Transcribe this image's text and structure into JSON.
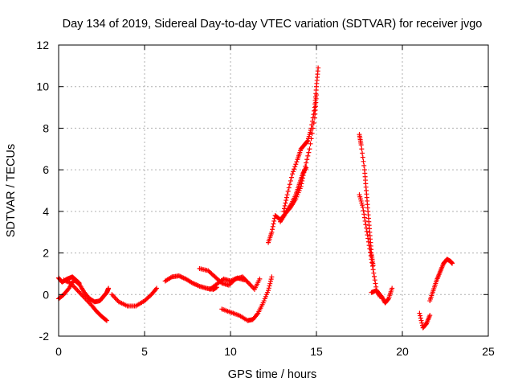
{
  "chart_data": {
    "type": "scatter",
    "title": "Day 134 of 2019, Sidereal Day-to-day VTEC variation (SDTVAR) for receiver jvgo",
    "xlabel": "GPS time / hours",
    "ylabel": "SDTVAR / TECUs",
    "xlim": [
      0,
      25
    ],
    "ylim": [
      -2,
      12
    ],
    "xticks": [
      0,
      5,
      10,
      15,
      20,
      25
    ],
    "yticks": [
      -2,
      0,
      2,
      4,
      6,
      8,
      10,
      12
    ],
    "grid": true,
    "marker": "+",
    "color": "#ff0000",
    "segments": [
      {
        "x": [
          0.0,
          0.2,
          0.5,
          0.8,
          1.0,
          1.2
        ],
        "y": [
          0.8,
          0.6,
          0.75,
          0.85,
          0.7,
          0.55
        ]
      },
      {
        "x": [
          0.0,
          0.3,
          0.6,
          0.9,
          1.2,
          1.5,
          1.8,
          2.1,
          2.4,
          2.6,
          2.8,
          2.9
        ],
        "y": [
          -0.2,
          0.0,
          0.3,
          0.7,
          0.5,
          0.1,
          -0.2,
          -0.35,
          -0.3,
          -0.1,
          0.1,
          0.3
        ]
      },
      {
        "x": [
          0.3,
          0.7,
          1.1,
          1.5,
          1.9,
          2.2,
          2.5,
          2.8
        ],
        "y": [
          0.7,
          0.55,
          0.2,
          -0.15,
          -0.5,
          -0.8,
          -1.05,
          -1.25
        ]
      },
      {
        "x": [
          3.1,
          3.5,
          4.0,
          4.5,
          5.0,
          5.4,
          5.7
        ],
        "y": [
          0.0,
          -0.35,
          -0.55,
          -0.55,
          -0.3,
          0.0,
          0.3
        ]
      },
      {
        "x": [
          6.2,
          6.6,
          7.0,
          7.4,
          7.8,
          8.2,
          8.6,
          9.0,
          9.2
        ],
        "y": [
          0.65,
          0.85,
          0.9,
          0.75,
          0.55,
          0.4,
          0.3,
          0.25,
          0.35
        ]
      },
      {
        "x": [
          8.2,
          8.7,
          9.1,
          9.5,
          9.9,
          10.3,
          10.7,
          11.0,
          11.4,
          11.7
        ],
        "y": [
          1.25,
          1.15,
          0.85,
          0.55,
          0.45,
          0.75,
          0.85,
          0.6,
          0.25,
          0.75
        ]
      },
      {
        "x": [
          8.8,
          9.2,
          9.6,
          10.0,
          10.4,
          10.8
        ],
        "y": [
          0.25,
          0.5,
          0.75,
          0.65,
          0.8,
          0.7
        ]
      },
      {
        "x": [
          9.5,
          10.0,
          10.5,
          11.0,
          11.3,
          11.6,
          11.9,
          12.2,
          12.4
        ],
        "y": [
          -0.7,
          -0.85,
          -1.0,
          -1.25,
          -1.2,
          -0.9,
          -0.4,
          0.2,
          0.85
        ]
      },
      {
        "x": [
          12.2,
          12.4,
          12.6,
          12.9,
          13.2,
          13.5,
          13.8,
          14.1,
          14.3,
          14.6,
          14.9,
          15.0
        ],
        "y": [
          2.5,
          3.0,
          3.8,
          3.6,
          3.9,
          4.2,
          4.6,
          5.2,
          6.0,
          7.0,
          8.5,
          9.6
        ]
      },
      {
        "x": [
          13.1,
          13.3,
          13.6,
          13.9,
          14.1,
          14.3,
          14.5,
          14.7,
          14.9,
          15.0,
          15.1
        ],
        "y": [
          4.0,
          4.8,
          5.8,
          6.5,
          7.0,
          7.2,
          7.4,
          8.0,
          9.0,
          10.0,
          10.9
        ]
      },
      {
        "x": [
          12.9,
          13.2,
          13.5,
          13.8,
          14.0,
          14.2,
          14.4
        ],
        "y": [
          3.5,
          3.9,
          4.3,
          4.8,
          5.3,
          5.8,
          6.1
        ]
      },
      {
        "x": [
          17.5,
          17.6,
          17.8,
          17.9,
          18.0,
          18.1,
          18.2,
          18.3
        ],
        "y": [
          7.7,
          7.2,
          6.0,
          5.0,
          4.0,
          3.0,
          2.0,
          1.4
        ]
      },
      {
        "x": [
          17.5,
          17.7,
          17.9,
          18.1,
          18.3,
          18.5,
          18.7
        ],
        "y": [
          4.8,
          4.2,
          3.2,
          2.2,
          1.2,
          0.2,
          -0.1
        ]
      },
      {
        "x": [
          18.2,
          18.5,
          18.8,
          19.0,
          19.2,
          19.4
        ],
        "y": [
          0.1,
          0.2,
          -0.1,
          -0.4,
          -0.2,
          0.3
        ]
      },
      {
        "x": [
          21.0,
          21.2,
          21.4,
          21.6
        ],
        "y": [
          -0.9,
          -1.6,
          -1.4,
          -1.0
        ]
      },
      {
        "x": [
          21.6,
          21.8,
          22.0,
          22.2,
          22.4,
          22.6,
          22.8,
          22.9
        ],
        "y": [
          -0.3,
          0.2,
          0.7,
          1.1,
          1.5,
          1.7,
          1.6,
          1.5
        ]
      }
    ]
  }
}
